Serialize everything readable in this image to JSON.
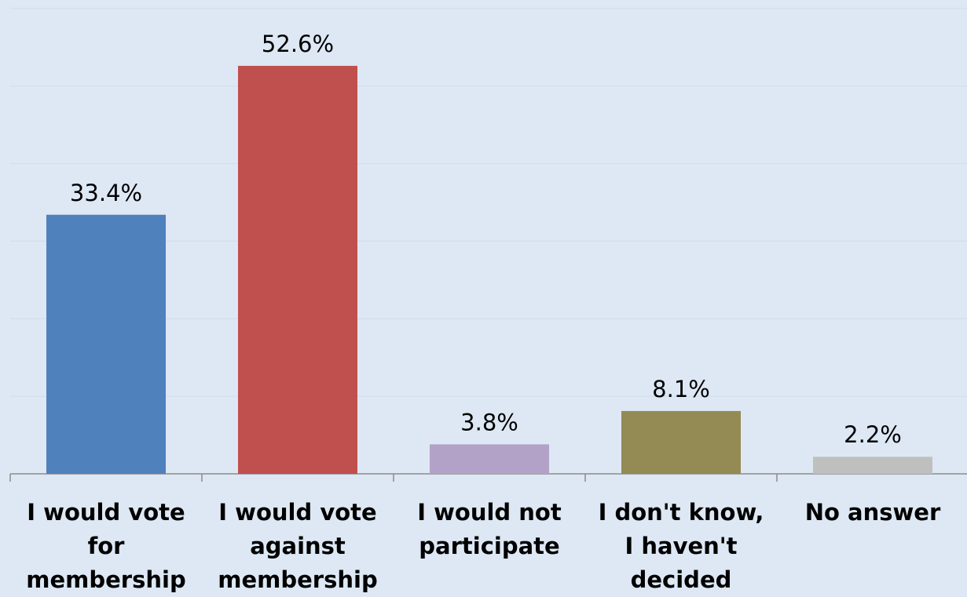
{
  "chart_data": {
    "type": "bar",
    "title": "",
    "xlabel": "",
    "ylabel": "",
    "ylim": [
      0,
      60
    ],
    "grid": true,
    "categories": [
      "I would vote for membership",
      "I would vote against membership",
      "I would not participate",
      "I don't know, I haven't decided",
      "No answer"
    ],
    "values": [
      33.4,
      52.6,
      3.8,
      8.1,
      2.2
    ],
    "data_labels": [
      "33.4%",
      "52.6%",
      "3.8%",
      "8.1%",
      "2.2%"
    ],
    "colors": [
      "#4f81bd",
      "#c0504d",
      "#b3a2c7",
      "#948a54",
      "#bfbfbf"
    ],
    "background": "#dde8f4"
  }
}
